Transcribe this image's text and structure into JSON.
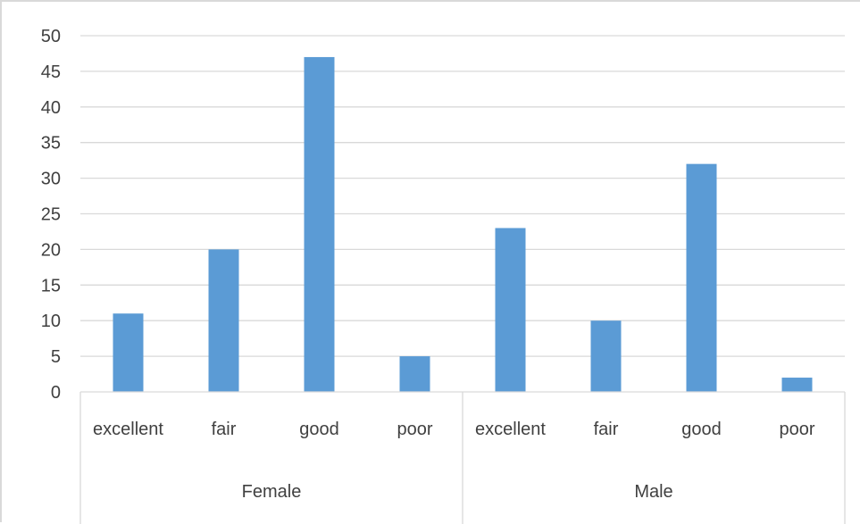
{
  "chart_data": {
    "type": "bar",
    "groups": [
      {
        "name": "Female",
        "categories": [
          "excellent",
          "fair",
          "good",
          "poor"
        ],
        "values": [
          11,
          20,
          47,
          5
        ]
      },
      {
        "name": "Male",
        "categories": [
          "excellent",
          "fair",
          "good",
          "poor"
        ],
        "values": [
          23,
          10,
          32,
          2
        ]
      }
    ],
    "categories": [
      "excellent",
      "fair",
      "good",
      "poor",
      "excellent",
      "fair",
      "good",
      "poor"
    ],
    "values": [
      11,
      20,
      47,
      5,
      23,
      10,
      32,
      2
    ],
    "y_ticks": [
      "0",
      "5",
      "10",
      "15",
      "20",
      "25",
      "30",
      "35",
      "40",
      "45",
      "50"
    ],
    "ylim": [
      0,
      50
    ],
    "title": "",
    "xlabel": "",
    "ylabel": "",
    "grid": true,
    "legend": "none",
    "bar_color": "#5b9bd5",
    "gridline_color": "#d9d9d9",
    "text_color": "#404040"
  }
}
